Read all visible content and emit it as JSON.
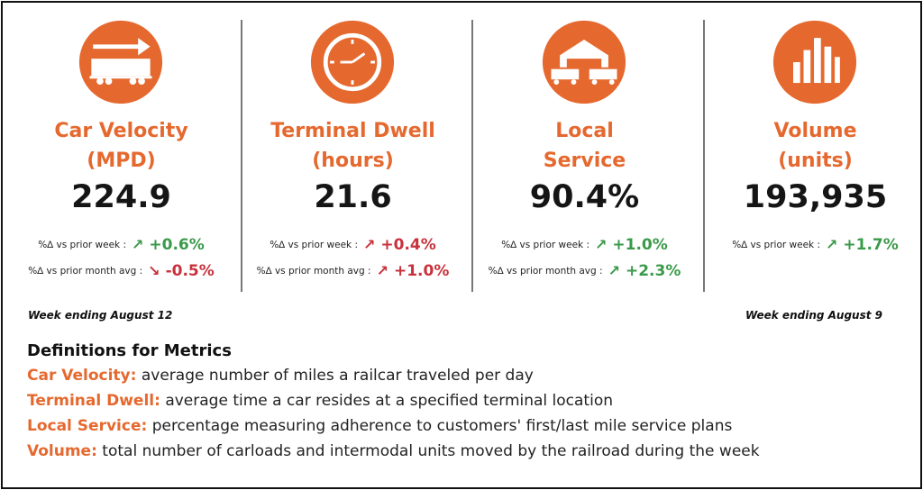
{
  "metrics": [
    {
      "title": [
        "Car Velocity",
        "(MPD)"
      ],
      "value": "224.9",
      "changes": [
        {
          "label": "%∆ vs prior week :",
          "arrow": "↗",
          "change": "+0.6%",
          "color": "#3a9a4a"
        },
        {
          "label": "%∆ vs prior month avg :",
          "arrow": "↘",
          "change": "-0.5%",
          "color": "#c8323c"
        }
      ]
    },
    {
      "title": [
        "Terminal Dwell",
        "(hours)"
      ],
      "value": "21.6",
      "changes": [
        {
          "label": "%∆ vs prior week :",
          "arrow": "↗",
          "change": "+0.4%",
          "color": "#c8323c"
        },
        {
          "label": "%∆ vs prior month avg :",
          "arrow": "↗",
          "change": "+1.0%",
          "color": "#c8323c"
        }
      ]
    },
    {
      "title": [
        "Local",
        "Service"
      ],
      "value": "90.4%",
      "changes": [
        {
          "label": "%∆ vs prior week :",
          "arrow": "↗",
          "change": "+1.0%",
          "color": "#3a9a4a"
        },
        {
          "label": "%∆ vs prior month avg :",
          "arrow": "↗",
          "change": "+2.3%",
          "color": "#3a9a4a"
        }
      ]
    },
    {
      "title": [
        "Volume",
        "(units)"
      ],
      "value": "193,935",
      "changes": [
        {
          "label": "%∆ vs prior week :",
          "arrow": "↗",
          "change": "+1.7%",
          "color": "#3a9a4a"
        }
      ]
    }
  ],
  "notes": [
    "Week ending August 12",
    "Week ending August 9"
  ],
  "definitions": {
    "title": "Definitions for Metrics",
    "items": [
      {
        "term": "Car Velocity:",
        "text": "average number of miles a railcar traveled per day"
      },
      {
        "term": "Terminal Dwell:",
        "text": "average time a car resides at a specified terminal location"
      },
      {
        "term": "Local Service:",
        "text": "percentage measuring adherence to customers' first/last mile service plans"
      },
      {
        "term": "Volume:",
        "text": "total number of carloads and intermodal units moved by the railroad during the week"
      }
    ]
  }
}
